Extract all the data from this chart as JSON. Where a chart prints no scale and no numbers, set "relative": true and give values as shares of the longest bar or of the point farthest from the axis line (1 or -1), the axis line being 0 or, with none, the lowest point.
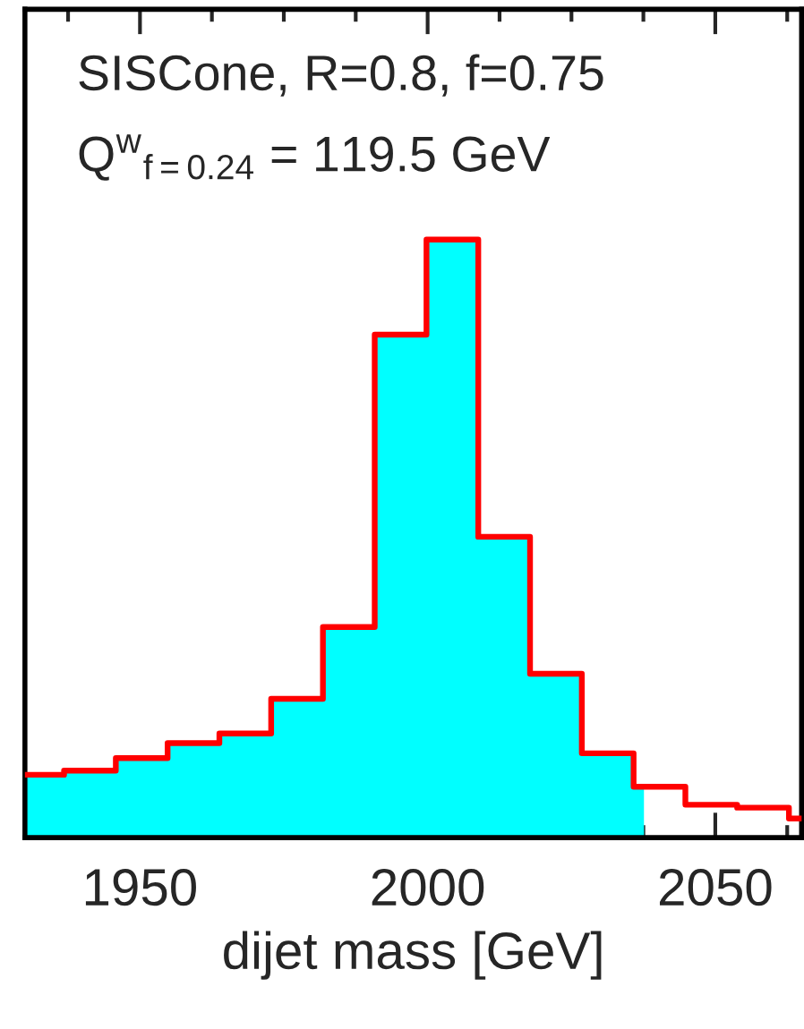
{
  "chart_data": {
    "type": "step",
    "relative": true,
    "xlabel": "dijet mass [GeV]",
    "annotations": [
      "SISCone, R=0.8, f=0.75",
      "Q$^{w}$$_{f=0.24}$ = 119.5 GeV"
    ],
    "xlim": [
      1930,
      2065
    ],
    "xticks": [
      {
        "value": 1937.5,
        "label": null
      },
      1950,
      {
        "value": 1962.5,
        "label": null
      },
      {
        "value": 1975,
        "label": null
      },
      {
        "value": 1987.5,
        "label": null
      },
      2000,
      {
        "value": 2012.5,
        "label": null
      },
      {
        "value": 2025,
        "label": null
      },
      {
        "value": 2037.5,
        "label": null
      },
      2050,
      {
        "value": 2062.5,
        "label": null
      }
    ],
    "series": [
      {
        "type": "area",
        "color": "#00ffff",
        "x": [
          1930,
          1936.8,
          1945.8,
          1954.8,
          1963.8,
          1972.8,
          1981.8,
          1990.8,
          1999.8,
          2008.8,
          2017.8,
          2026.8,
          2035.8,
          2037.6
        ],
        "values": [
          0.105,
          0.112,
          0.133,
          0.158,
          0.174,
          0.232,
          0.352,
          0.841,
          1,
          0.503,
          0.274,
          0.141,
          0.085,
          0.085
        ]
      },
      {
        "color": "#ff0000",
        "x": [
          1930,
          1936.8,
          1945.8,
          1954.8,
          1963.8,
          1972.8,
          1981.8,
          1990.8,
          1999.8,
          2008.8,
          2017.8,
          2026.8,
          2035.8,
          2044.8,
          2053.8,
          2062.8,
          2065
        ],
        "values": [
          0.105,
          0.112,
          0.133,
          0.158,
          0.174,
          0.232,
          0.352,
          0.841,
          1,
          0.503,
          0.274,
          0.141,
          0.085,
          0.055,
          0.05,
          0.032,
          0.032
        ]
      }
    ]
  }
}
